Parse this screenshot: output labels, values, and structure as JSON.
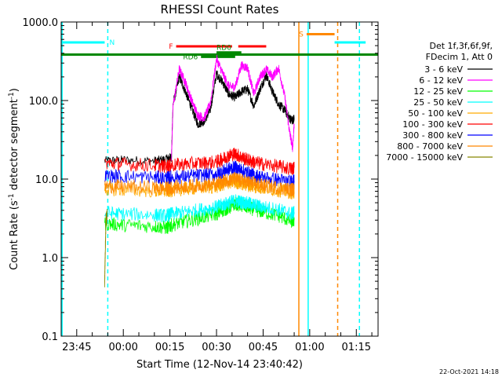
{
  "chart_data": {
    "type": "line",
    "title": "RHESSI Count Rates",
    "xlabel": "Start Time (12-Nov-14 23:40:42)",
    "ylabel_main": "Count Rate (s",
    "ylabel_sup1": "-1",
    "ylabel_mid": " detector segment",
    "ylabel_sup2": "-1",
    "ylabel_end": ")",
    "y_scale": "log",
    "ylim": [
      0.1,
      1000
    ],
    "xlim_minutes_from_2340": [
      0,
      102
    ],
    "x_tick_labels": [
      {
        "label": "23:45",
        "minute": 5
      },
      {
        "label": "00:00",
        "minute": 20
      },
      {
        "label": "00:15",
        "minute": 35
      },
      {
        "label": "00:30",
        "minute": 50
      },
      {
        "label": "00:45",
        "minute": 65
      },
      {
        "label": "01:00",
        "minute": 80
      },
      {
        "label": "01:15",
        "minute": 95
      }
    ],
    "y_tick_labels": [
      {
        "label": "0.1",
        "value": 0.1
      },
      {
        "label": "1.0",
        "value": 1
      },
      {
        "label": "10.0",
        "value": 10
      },
      {
        "label": "100.0",
        "value": 100
      },
      {
        "label": "1000.0",
        "value": 1000
      }
    ],
    "legend_header": [
      "Det 1f,3f,6f,9f,",
      "FDecim 1, Att 0"
    ],
    "legend_position": "right",
    "series": [
      {
        "name": "3 - 6 keV",
        "color": "#000000",
        "x": [
          14,
          20,
          30,
          34,
          35.5,
          36,
          38,
          40,
          42,
          44,
          46,
          48,
          50,
          52,
          54,
          56,
          58,
          60,
          62,
          64,
          66,
          68,
          70,
          72,
          73.5,
          74.5,
          75
        ],
        "y": [
          17,
          17.5,
          17,
          18,
          19,
          90,
          200,
          130,
          80,
          50,
          55,
          75,
          220,
          170,
          120,
          110,
          130,
          140,
          85,
          140,
          210,
          130,
          90,
          75,
          60,
          55,
          60
        ]
      },
      {
        "name": "6 - 12 keV",
        "color": "#ff00ff",
        "x": [
          35.5,
          36,
          38,
          40,
          42,
          44,
          46,
          48,
          50,
          52,
          54,
          56,
          58,
          60,
          62,
          64,
          66,
          68,
          70,
          72,
          73.5,
          74.5,
          75
        ],
        "y": [
          19,
          85,
          250,
          170,
          100,
          65,
          60,
          90,
          340,
          220,
          150,
          150,
          280,
          260,
          120,
          200,
          250,
          200,
          260,
          110,
          40,
          25,
          50
        ]
      },
      {
        "name": "12 - 25 keV",
        "color": "#00ff00",
        "x": [
          14,
          20,
          30,
          34,
          35.5,
          40,
          45,
          50,
          52,
          54,
          56,
          58,
          60,
          62,
          65,
          70,
          74,
          75
        ],
        "y": [
          2.7,
          2.6,
          2.5,
          2.4,
          2.6,
          2.9,
          3.2,
          3.6,
          4.0,
          4.3,
          4.9,
          4.6,
          4.4,
          4.1,
          3.8,
          3.4,
          2.9,
          3.0
        ]
      },
      {
        "name": "25 - 50 keV",
        "color": "#00ffff",
        "x": [
          14,
          20,
          30,
          34,
          35.5,
          40,
          45,
          50,
          52,
          54,
          56,
          58,
          60,
          62,
          65,
          70,
          74,
          75
        ],
        "y": [
          3.7,
          3.6,
          3.5,
          3.4,
          3.6,
          3.8,
          4.1,
          4.4,
          4.7,
          5.0,
          5.3,
          5.1,
          4.9,
          4.7,
          4.4,
          4.1,
          3.6,
          3.8
        ]
      },
      {
        "name": "50 - 100 keV",
        "color": "#ffaa00",
        "x": [
          14,
          20,
          30,
          34,
          35.5,
          40,
          45,
          50,
          52,
          54,
          56,
          58,
          60,
          62,
          65,
          70,
          74,
          75
        ],
        "y": [
          7.5,
          7.3,
          7.1,
          7.0,
          7.2,
          7.5,
          7.8,
          8.0,
          8.6,
          9.1,
          9.2,
          8.8,
          8.4,
          8.1,
          7.7,
          7.2,
          6.8,
          6.9
        ]
      },
      {
        "name": "100 - 300 keV",
        "color": "#ff0000",
        "x": [
          14,
          20,
          30,
          34,
          35.5,
          40,
          45,
          50,
          52,
          54,
          56,
          58,
          60,
          62,
          65,
          70,
          74,
          75
        ],
        "y": [
          16,
          15.5,
          15,
          14.5,
          15,
          15.5,
          16,
          16.5,
          18,
          20,
          21,
          19,
          17.5,
          16.5,
          15.5,
          14.5,
          13.5,
          14
        ]
      },
      {
        "name": "300 - 800 keV",
        "color": "#0000ff",
        "x": [
          14,
          20,
          30,
          34,
          35.5,
          40,
          45,
          50,
          52,
          54,
          56,
          58,
          60,
          62,
          65,
          70,
          74,
          75
        ],
        "y": [
          11,
          10.8,
          10.5,
          10.3,
          10.5,
          10.8,
          11.2,
          11.5,
          12.5,
          13.5,
          14,
          13,
          12,
          11.2,
          10.5,
          9.8,
          9.2,
          9.4
        ]
      },
      {
        "name": "800 - 7000 keV",
        "color": "#ff8800",
        "x": [
          14,
          20,
          30,
          34,
          35.5,
          40,
          45,
          50,
          52,
          54,
          56,
          58,
          60,
          62,
          65,
          70,
          74,
          75
        ],
        "y": [
          8.2,
          8.0,
          7.8,
          7.6,
          7.8,
          8.1,
          8.4,
          8.6,
          9.3,
          9.9,
          10,
          9.6,
          9.1,
          8.8,
          8.3,
          7.8,
          7.3,
          7.5
        ]
      },
      {
        "name": "7000 - 15000 keV",
        "color": "#888800",
        "x": [
          14,
          14.2,
          14.4,
          14.8
        ],
        "y": [
          0.5,
          1.2,
          3.0,
          3.5
        ]
      }
    ],
    "flags": [
      {
        "label": "N",
        "color": "#00ffff",
        "segments": [
          [
            0,
            14
          ],
          [
            88,
            98
          ]
        ],
        "level": 550
      },
      {
        "label": "F",
        "color": "#ff0000",
        "segments": [
          [
            37,
            55
          ],
          [
            57,
            66
          ]
        ],
        "level": 490
      },
      {
        "label": "S",
        "color": "#ff8800",
        "segments": [
          [
            79,
            88
          ]
        ],
        "level": 700
      },
      {
        "label": "RD0",
        "color": "#008800",
        "segments": [
          [
            50,
            58
          ]
        ],
        "level": 410
      },
      {
        "label": "RD6",
        "color": "#008800",
        "segments": [
          [
            45,
            56
          ]
        ],
        "level": 360
      },
      {
        "label": "",
        "color": "#008800",
        "segments": [
          [
            0,
            102
          ]
        ],
        "level": 385
      }
    ],
    "vertical_markers": [
      {
        "minute": 0.3,
        "color": "#00ffff",
        "style": "solid"
      },
      {
        "minute": 15,
        "color": "#00ffff",
        "style": "dashed"
      },
      {
        "minute": 76.5,
        "color": "#ff8800",
        "style": "solid"
      },
      {
        "minute": 79.5,
        "color": "#00ffff",
        "style": "solid"
      },
      {
        "minute": 89,
        "color": "#ff8800",
        "style": "dashed"
      },
      {
        "minute": 96,
        "color": "#00ffff",
        "style": "dashed"
      }
    ],
    "grid": false
  },
  "footer_stamp": "22-Oct-2021 14:18"
}
